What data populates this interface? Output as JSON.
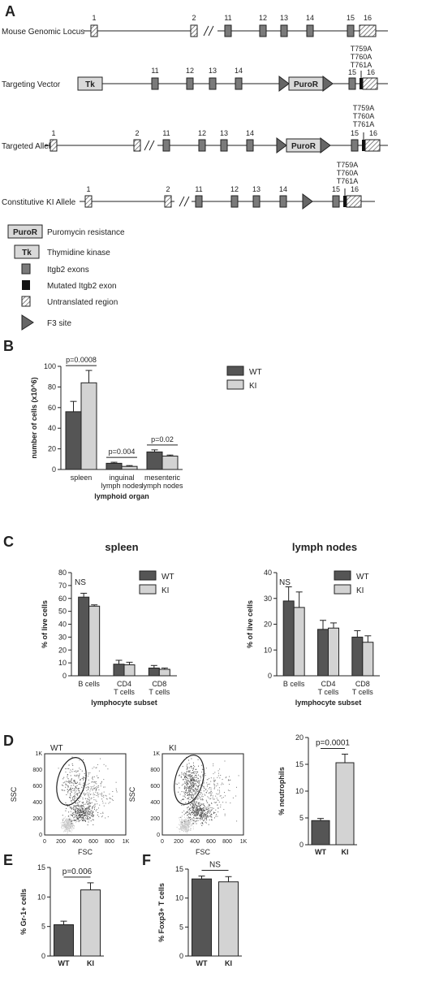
{
  "panels": {
    "A": "A",
    "B": "B",
    "C": "C",
    "D": "D",
    "E": "E",
    "F": "F"
  },
  "panelA": {
    "rows": {
      "locus": "Mouse Genomic Locus",
      "vector": "Targeting Vector",
      "allele": "Targeted Allele",
      "ki": "Constitutive KI Allele"
    },
    "exon_labels": [
      "1",
      "2",
      "11",
      "12",
      "13",
      "14",
      "15",
      "16"
    ],
    "vector_exon_labels": [
      "11",
      "12",
      "13",
      "14",
      "15",
      "16"
    ],
    "tk": "Tk",
    "puror": "PuroR",
    "mutation": [
      "T759A",
      "T760A",
      "T761A"
    ],
    "legend": [
      {
        "key": "puror",
        "text": "Puromycin resistance",
        "box": "PuroR"
      },
      {
        "key": "tk",
        "text": "Thymidine kinase",
        "box": "Tk"
      },
      {
        "key": "exon",
        "text": "Itgb2 exons"
      },
      {
        "key": "mut",
        "text": "Mutated Itgb2 exon"
      },
      {
        "key": "utr",
        "text": "Untranslated region"
      },
      {
        "key": "f3",
        "text": "F3 site"
      }
    ]
  },
  "colors": {
    "wt": "#555555",
    "ki": "#d3d3d3",
    "exon": "#7a7a7a",
    "dark": "#222222"
  },
  "chart_data": [
    {
      "id": "B",
      "type": "bar",
      "categories": [
        "spleen",
        "inguinal\nlymph nodes",
        "mesenteric\nlymph nodes"
      ],
      "category_lines": [
        [
          "spleen"
        ],
        [
          "inguinal",
          "lymph nodes"
        ],
        [
          "mesenteric",
          "lymph nodes"
        ]
      ],
      "series": [
        {
          "name": "WT",
          "values": [
            56,
            6,
            17
          ],
          "err": [
            10,
            1,
            2
          ]
        },
        {
          "name": "KI",
          "values": [
            84,
            3,
            13
          ],
          "err": [
            12,
            0.8,
            1
          ]
        }
      ],
      "ylabel": "number of cells (x10^6)",
      "xlabel": "lymphoid organ",
      "ylim": [
        0,
        100
      ],
      "yticks": [
        0,
        20,
        40,
        60,
        80,
        100
      ],
      "pvalues": [
        "p=0.0008",
        "p=0.004",
        "p=0.02"
      ],
      "legend": "top-right"
    },
    {
      "id": "C1",
      "type": "bar",
      "title": "spleen",
      "categories": [
        "B cells",
        "CD4 T cells",
        "CD8 T cells"
      ],
      "category_lines": [
        [
          "B cells"
        ],
        [
          "CD4",
          "T cells"
        ],
        [
          "CD8",
          "T cells"
        ]
      ],
      "series": [
        {
          "name": "WT",
          "values": [
            61,
            9,
            6
          ],
          "err": [
            3,
            3,
            2
          ]
        },
        {
          "name": "KI",
          "values": [
            54,
            8.5,
            5
          ],
          "err": [
            1,
            2,
            1
          ]
        }
      ],
      "ylabel": "% of live cells",
      "xlabel": "lymphocyte subset",
      "ylim": [
        0,
        80
      ],
      "yticks": [
        0,
        10,
        20,
        30,
        40,
        50,
        60,
        70,
        80
      ],
      "annotation": "NS",
      "legend": "top-right"
    },
    {
      "id": "C2",
      "type": "bar",
      "title": "lymph nodes",
      "categories": [
        "B cells",
        "CD4 T cells",
        "CD8 T cells"
      ],
      "category_lines": [
        [
          "B cells"
        ],
        [
          "CD4",
          "T cells"
        ],
        [
          "CD8",
          "T cells"
        ]
      ],
      "series": [
        {
          "name": "WT",
          "values": [
            29,
            18,
            15
          ],
          "err": [
            5.5,
            3.5,
            2.5
          ]
        },
        {
          "name": "KI",
          "values": [
            26.5,
            18.5,
            13
          ],
          "err": [
            6,
            2,
            2.5
          ]
        }
      ],
      "ylabel": "% of live cells",
      "xlabel": "lymphocyte subset",
      "ylim": [
        0,
        40
      ],
      "yticks": [
        0,
        10,
        20,
        30,
        40
      ],
      "annotation": "NS",
      "legend": "top-right"
    },
    {
      "id": "D",
      "type": "bar",
      "categories": [
        "WT",
        "KI"
      ],
      "values": [
        4.5,
        15.3
      ],
      "err": [
        0.4,
        1.6
      ],
      "ylabel": "% neutrophils",
      "ylim": [
        0,
        20
      ],
      "yticks": [
        0,
        5,
        10,
        15,
        20
      ],
      "pvalue": "p=0.0001"
    },
    {
      "id": "E",
      "type": "bar",
      "categories": [
        "WT",
        "KI"
      ],
      "values": [
        5.3,
        11.2
      ],
      "err": [
        0.6,
        1.2
      ],
      "ylabel": "% Gr-1+ cells",
      "ylim": [
        0,
        15
      ],
      "yticks": [
        0,
        5,
        10,
        15
      ],
      "pvalue": "p=0.006"
    },
    {
      "id": "F",
      "type": "bar",
      "categories": [
        "WT",
        "KI"
      ],
      "values": [
        13.3,
        12.8
      ],
      "err": [
        0.5,
        0.9
      ],
      "ylabel": "% Foxp3+ T cells",
      "ylim": [
        0,
        15
      ],
      "yticks": [
        0,
        5,
        10,
        15
      ],
      "pvalue": "NS"
    }
  ],
  "flow": {
    "plots": [
      {
        "title": "WT"
      },
      {
        "title": "KI"
      }
    ],
    "xlabel": "FSC",
    "ylabel": "SSC",
    "ticks": [
      "0",
      "200",
      "400",
      "600",
      "800",
      "1K"
    ]
  }
}
